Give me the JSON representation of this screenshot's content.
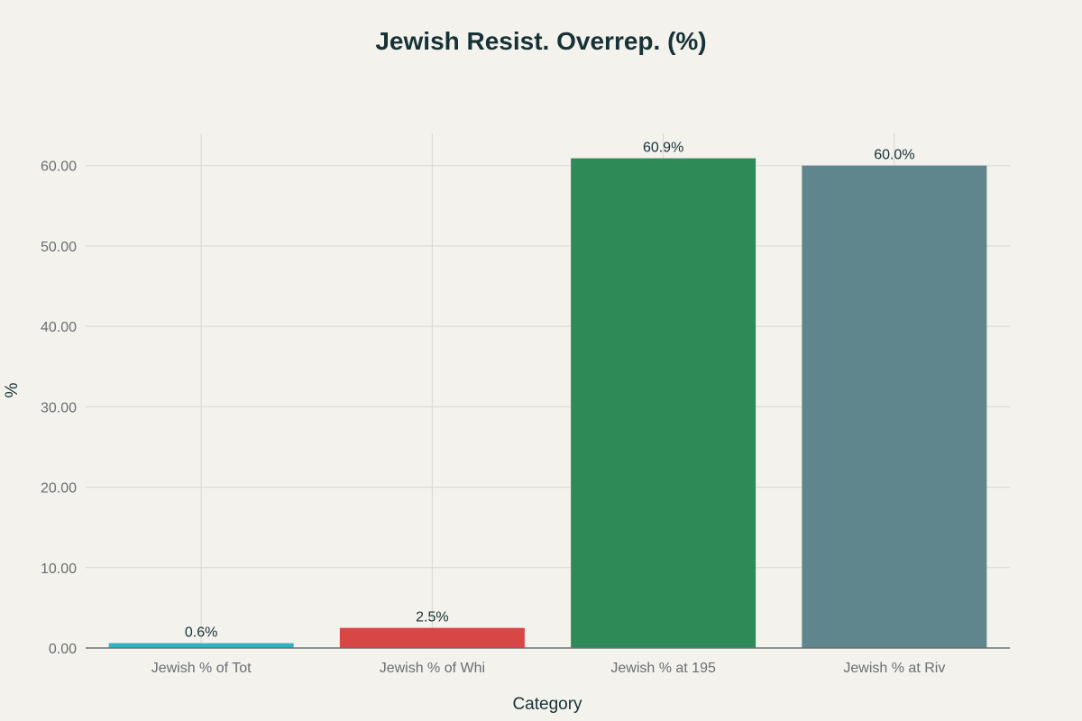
{
  "chart_data": {
    "type": "bar",
    "title": "Jewish Resist. Overrep. (%)",
    "xlabel": "Category",
    "ylabel": "%",
    "categories": [
      "Jewish % of Tot",
      "Jewish % of Whi",
      "Jewish % at 195",
      "Jewish % at Riv"
    ],
    "values": [
      0.6,
      2.5,
      60.9,
      60.0
    ],
    "data_labels": [
      "0.6%",
      "2.5%",
      "60.9%",
      "60.0%"
    ],
    "colors": [
      "#2CB4C4",
      "#D94646",
      "#2E8B57",
      "#5E868C"
    ],
    "ylim": [
      0,
      64
    ],
    "yticks": [
      0,
      10,
      20,
      30,
      40,
      50,
      60
    ],
    "ytick_labels": [
      "0.00",
      "10.00",
      "20.00",
      "30.00",
      "40.00",
      "50.00",
      "60.00"
    ],
    "grid": true,
    "legend": false
  }
}
